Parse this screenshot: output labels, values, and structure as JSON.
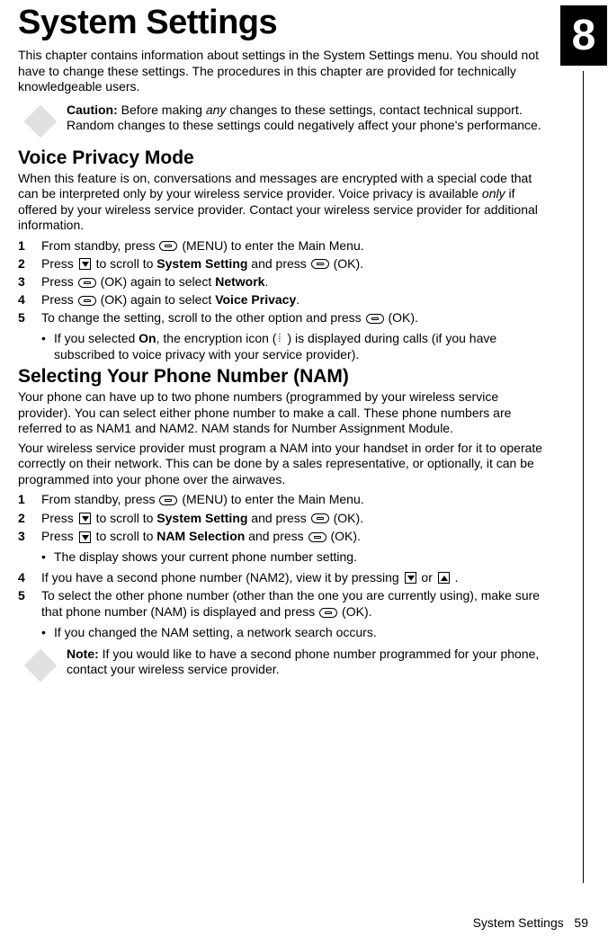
{
  "chapter_number": "8",
  "page_title": "System Settings",
  "intro_paragraph": "This chapter contains information about settings in the System Settings menu. You should not have to change these settings. The procedures in this chapter are provided for technically knowledgeable users.",
  "caution": {
    "label": "Caution:",
    "text_before_italic": " Before making ",
    "italic_word": "any",
    "text_after_italic": " changes to these settings, contact technical support. Random changes to these settings could negatively affect your phone's performance."
  },
  "section1": {
    "heading": "Voice Privacy Mode",
    "para_before_italic": "When this feature is on, conversations and messages are encrypted with a special code that can be interpreted only by your wireless service provider. Voice privacy is available ",
    "italic_word": "only",
    "para_after_italic": " if offered by your wireless service provider. Contact your wireless service provider for additional information.",
    "steps": {
      "s1a": "From standby, press ",
      "s1b": " (MENU) to enter the Main Menu.",
      "s2a": "Press ",
      "s2b": " to scroll to ",
      "s2bold": "System Setting",
      "s2c": " and press ",
      "s2d": " (OK).",
      "s3a": "Press ",
      "s3b": " (OK) again to select ",
      "s3bold": "Network",
      "s3c": ".",
      "s4a": "Press ",
      "s4b": " (OK) again to select ",
      "s4bold": "Voice Privacy",
      "s4c": ".",
      "s5a": "To change the setting, scroll to the other option and press ",
      "s5b": " (OK)."
    },
    "sub": {
      "a": "If you selected ",
      "bold": "On",
      "b": ", the encryption icon (",
      "c": ") is displayed during calls (if you have subscribed to voice privacy with your service provider)."
    }
  },
  "section2": {
    "heading": "Selecting Your Phone Number (NAM)",
    "para1": "Your phone can have up to two phone numbers (programmed by your wireless service provider). You can select either phone number to make a call. These phone numbers are referred to as NAM1 and NAM2. NAM stands for Number Assignment Module.",
    "para2": "Your wireless service provider must program a NAM into your handset in order for it to operate correctly on their network. This can be done by a sales representative, or optionally, it can be programmed into your phone over the airwaves.",
    "steps": {
      "s1a": "From standby, press ",
      "s1b": " (MENU) to enter the Main Menu.",
      "s2a": "Press ",
      "s2b": " to scroll to ",
      "s2bold": "System Setting",
      "s2c": " and press ",
      "s2d": " (OK).",
      "s3a": "Press ",
      "s3b": " to scroll to ",
      "s3bold": "NAM Selection",
      "s3c": " and press ",
      "s3d": " (OK).",
      "sub3": "The display shows your current phone number setting.",
      "s4a": "If you have a second phone number (NAM2), view it by pressing ",
      "s4b": " or ",
      "s4c": " .",
      "s5a": "To select the other phone number (other than the one you are currently using), make sure that phone number (NAM) is displayed and press ",
      "s5b": " (OK).",
      "sub5": "If you changed the NAM setting, a network search occurs."
    }
  },
  "note": {
    "label": "Note:",
    "text": " If you would like to have a second phone number programmed for your phone, contact your wireless service provider."
  },
  "footer": {
    "label": "System Settings",
    "page": "59"
  }
}
